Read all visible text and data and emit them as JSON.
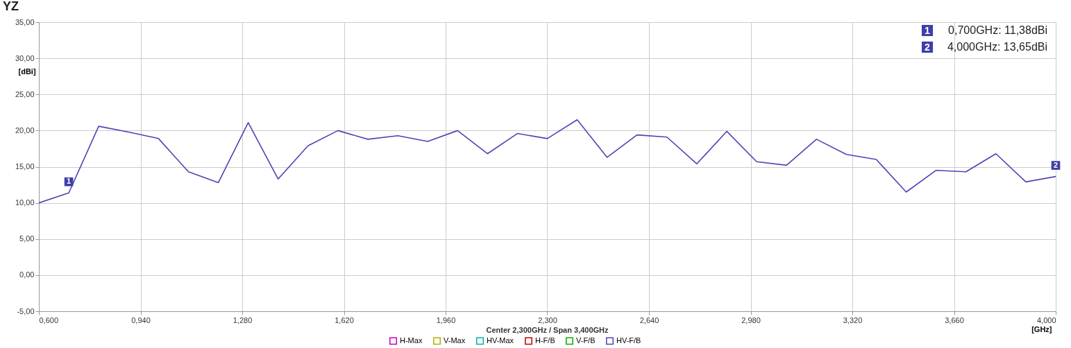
{
  "chart_data": {
    "type": "line",
    "title": "YZ",
    "xlabel": "[GHz]",
    "ylabel": "[dBi]",
    "x": [
      0.6,
      0.7,
      0.8,
      0.9,
      1.0,
      1.1,
      1.2,
      1.3,
      1.4,
      1.5,
      1.6,
      1.7,
      1.8,
      1.9,
      2.0,
      2.1,
      2.2,
      2.3,
      2.4,
      2.5,
      2.6,
      2.7,
      2.8,
      2.9,
      3.0,
      3.1,
      3.2,
      3.3,
      3.4,
      3.5,
      3.6,
      3.7,
      3.8,
      3.9,
      4.0
    ],
    "series": [
      {
        "name": "H-Max",
        "color": "#c000c0",
        "values": [
          null,
          null,
          null,
          null,
          null,
          null,
          null,
          null,
          null,
          null,
          null,
          null,
          null,
          null,
          null,
          null,
          null,
          null,
          null,
          null,
          null,
          null,
          null,
          null,
          null,
          null,
          null,
          null,
          null,
          null,
          null,
          null,
          null,
          null,
          null
        ]
      },
      {
        "name": "V-Max",
        "color": "#b0b000",
        "values": [
          null,
          null,
          null,
          null,
          null,
          null,
          null,
          null,
          null,
          null,
          null,
          null,
          null,
          null,
          null,
          null,
          null,
          null,
          null,
          null,
          null,
          null,
          null,
          null,
          null,
          null,
          null,
          null,
          null,
          null,
          null,
          null,
          null,
          null,
          null
        ]
      },
      {
        "name": "HV-Max",
        "color": "#00b0b0",
        "values": [
          null,
          null,
          null,
          null,
          null,
          null,
          null,
          null,
          null,
          null,
          null,
          null,
          null,
          null,
          null,
          null,
          null,
          null,
          null,
          null,
          null,
          null,
          null,
          null,
          null,
          null,
          null,
          null,
          null,
          null,
          null,
          null,
          null,
          null,
          null
        ]
      },
      {
        "name": "H-F/B",
        "color": "#c00000",
        "values": [
          null,
          null,
          null,
          null,
          null,
          null,
          null,
          null,
          null,
          null,
          null,
          null,
          null,
          null,
          null,
          null,
          null,
          null,
          null,
          null,
          null,
          null,
          null,
          null,
          null,
          null,
          null,
          null,
          null,
          null,
          null,
          null,
          null,
          null,
          null
        ]
      },
      {
        "name": "V-F/B",
        "color": "#00b000",
        "values": [
          null,
          null,
          null,
          null,
          null,
          null,
          null,
          null,
          null,
          null,
          null,
          null,
          null,
          null,
          null,
          null,
          null,
          null,
          null,
          null,
          null,
          null,
          null,
          null,
          null,
          null,
          null,
          null,
          null,
          null,
          null,
          null,
          null,
          null,
          null
        ]
      },
      {
        "name": "HV-F/B",
        "color": "#4b44b5",
        "values": [
          10.0,
          11.38,
          20.6,
          19.8,
          18.9,
          14.3,
          12.8,
          21.1,
          13.3,
          17.9,
          20.0,
          18.8,
          19.3,
          18.5,
          20.0,
          16.8,
          19.6,
          18.9,
          21.5,
          16.3,
          19.4,
          19.1,
          15.4,
          19.9,
          15.7,
          15.2,
          18.8,
          16.7,
          16.0,
          11.5,
          14.5,
          14.3,
          16.8,
          12.9,
          13.65
        ]
      }
    ],
    "xlim": [
      0.6,
      4.0
    ],
    "xticks": [
      {
        "value": 0.6,
        "label": "0,600"
      },
      {
        "value": 0.94,
        "label": "0,940"
      },
      {
        "value": 1.28,
        "label": "1,280"
      },
      {
        "value": 1.62,
        "label": "1,620"
      },
      {
        "value": 1.96,
        "label": "1,960"
      },
      {
        "value": 2.3,
        "label": "2,300"
      },
      {
        "value": 2.64,
        "label": "2,640"
      },
      {
        "value": 2.98,
        "label": "2,980"
      },
      {
        "value": 3.32,
        "label": "3,320"
      },
      {
        "value": 3.66,
        "label": "3,660"
      },
      {
        "value": 4.0,
        "label": "4,000"
      }
    ],
    "ylim": [
      -5,
      35
    ],
    "yticks": [
      {
        "value": -5,
        "label": "-5,00"
      },
      {
        "value": 0,
        "label": "0,00"
      },
      {
        "value": 5,
        "label": "5,00"
      },
      {
        "value": 10,
        "label": "10,00"
      },
      {
        "value": 15,
        "label": "15,00"
      },
      {
        "value": 20,
        "label": "20,00"
      },
      {
        "value": 25,
        "label": "25,00"
      },
      {
        "value": 30,
        "label": "30,00"
      },
      {
        "value": 35,
        "label": "35,00"
      }
    ],
    "grid": true,
    "legend": "bottom",
    "marker": "none",
    "line_style": "solid",
    "annotations": [
      "Center 2,300GHz / Span 3,400GHz",
      "0,700GHz: 11,38dBi",
      "4,000GHz: 13,65dBi",
      {
        "text": "1",
        "x": 0.7,
        "y": 11.38
      },
      {
        "text": "2",
        "x": 4.0,
        "y": 13.65
      }
    ]
  }
}
